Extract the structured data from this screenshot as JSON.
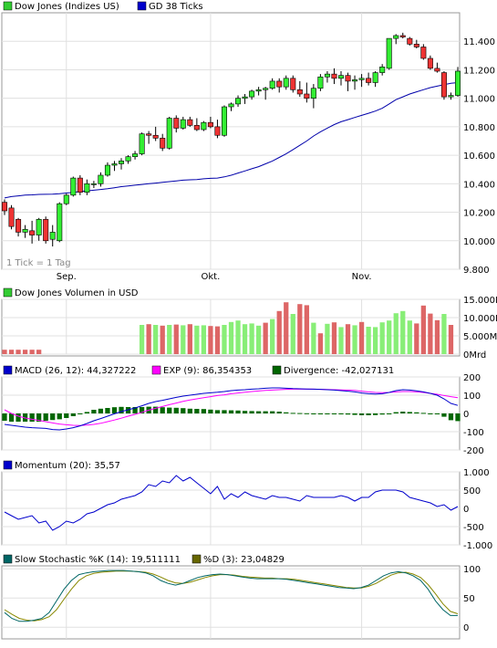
{
  "chart_data": [
    {
      "type": "candlestick",
      "legend": [
        {
          "label": "Dow Jones (Indizes US)",
          "color": "#33cc33"
        },
        {
          "label": "GD 38 Ticks",
          "color": "#0000cc"
        }
      ],
      "ylim": [
        9800,
        11600
      ],
      "yticks": [
        "11.400",
        "11.200",
        "11.000",
        "10.800",
        "10.600",
        "10.400",
        "10.200",
        "10.000",
        "9.800"
      ],
      "ytick_values": [
        11400,
        11200,
        11000,
        10800,
        10600,
        10400,
        10200,
        10000,
        9800
      ],
      "xticks": [
        {
          "label": "Sep.",
          "index": 9
        },
        {
          "label": "Okt.",
          "index": 30
        },
        {
          "label": "Nov.",
          "index": 52
        }
      ],
      "note": "1 Tick = 1 Tag",
      "candles": [
        [
          10270,
          10290,
          10180,
          10210
        ],
        [
          10230,
          10250,
          10080,
          10100
        ],
        [
          10150,
          10160,
          10030,
          10060
        ],
        [
          10060,
          10110,
          10020,
          10080
        ],
        [
          10070,
          10140,
          9980,
          10040
        ],
        [
          10040,
          10160,
          10000,
          10150
        ],
        [
          10150,
          10170,
          9980,
          10000
        ],
        [
          10010,
          10110,
          9960,
          10060
        ],
        [
          10000,
          10270,
          9990,
          10260
        ],
        [
          10260,
          10330,
          10250,
          10320
        ],
        [
          10320,
          10450,
          10310,
          10440
        ],
        [
          10440,
          10460,
          10320,
          10340
        ],
        [
          10340,
          10430,
          10320,
          10400
        ],
        [
          10400,
          10420,
          10370,
          10400
        ],
        [
          10400,
          10480,
          10380,
          10460
        ],
        [
          10460,
          10550,
          10450,
          10530
        ],
        [
          10530,
          10560,
          10490,
          10540
        ],
        [
          10540,
          10580,
          10500,
          10560
        ],
        [
          10560,
          10600,
          10540,
          10590
        ],
        [
          10590,
          10630,
          10570,
          10610
        ],
        [
          10610,
          10760,
          10600,
          10750
        ],
        [
          10750,
          10770,
          10680,
          10740
        ],
        [
          10740,
          10800,
          10700,
          10720
        ],
        [
          10720,
          10750,
          10630,
          10650
        ],
        [
          10650,
          10870,
          10640,
          10860
        ],
        [
          10860,
          10880,
          10760,
          10790
        ],
        [
          10790,
          10870,
          10780,
          10850
        ],
        [
          10850,
          10870,
          10800,
          10810
        ],
        [
          10810,
          10860,
          10770,
          10780
        ],
        [
          10780,
          10840,
          10770,
          10830
        ],
        [
          10830,
          10870,
          10790,
          10800
        ],
        [
          10800,
          10850,
          10720,
          10740
        ],
        [
          10740,
          10950,
          10730,
          10940
        ],
        [
          10940,
          10970,
          10910,
          10960
        ],
        [
          10960,
          11020,
          10940,
          11000
        ],
        [
          11000,
          11030,
          10960,
          11010
        ],
        [
          11010,
          11060,
          10990,
          11050
        ],
        [
          11050,
          11080,
          11020,
          11060
        ],
        [
          11060,
          11080,
          10990,
          11070
        ],
        [
          11070,
          11140,
          11060,
          11120
        ],
        [
          11120,
          11140,
          11040,
          11080
        ],
        [
          11080,
          11160,
          11060,
          11140
        ],
        [
          11140,
          11160,
          11040,
          11060
        ],
        [
          11060,
          11120,
          11010,
          11030
        ],
        [
          11030,
          11110,
          10970,
          11000
        ],
        [
          11000,
          11100,
          10930,
          11070
        ],
        [
          11070,
          11170,
          11050,
          11150
        ],
        [
          11150,
          11190,
          11110,
          11170
        ],
        [
          11170,
          11210,
          11100,
          11140
        ],
        [
          11140,
          11190,
          11090,
          11160
        ],
        [
          11160,
          11180,
          11050,
          11120
        ],
        [
          11120,
          11160,
          11060,
          11130
        ],
        [
          11130,
          11170,
          11080,
          11140
        ],
        [
          11140,
          11180,
          11090,
          11110
        ],
        [
          11110,
          11190,
          11080,
          11180
        ],
        [
          11180,
          11240,
          11160,
          11220
        ],
        [
          11210,
          11420,
          11200,
          11420
        ],
        [
          11420,
          11450,
          11380,
          11440
        ],
        [
          11440,
          11460,
          11420,
          11430
        ],
        [
          11420,
          11430,
          11370,
          11380
        ],
        [
          11380,
          11410,
          11350,
          11360
        ],
        [
          11360,
          11380,
          11270,
          11280
        ],
        [
          11280,
          11300,
          11200,
          11210
        ],
        [
          11210,
          11250,
          11180,
          11190
        ],
        [
          11180,
          11190,
          10990,
          11010
        ],
        [
          11010,
          11040,
          10990,
          11020
        ],
        [
          11020,
          11220,
          11010,
          11190
        ]
      ],
      "ma": [
        10300,
        10310,
        10315,
        10320,
        10322,
        10325,
        10326,
        10327,
        10330,
        10335,
        10340,
        10345,
        10350,
        10355,
        10360,
        10365,
        10372,
        10380,
        10385,
        10390,
        10395,
        10400,
        10405,
        10410,
        10415,
        10420,
        10425,
        10428,
        10430,
        10435,
        10438,
        10440,
        10448,
        10460,
        10475,
        10490,
        10505,
        10520,
        10540,
        10560,
        10585,
        10610,
        10640,
        10670,
        10700,
        10735,
        10765,
        10790,
        10815,
        10835,
        10850,
        10865,
        10880,
        10895,
        10910,
        10930,
        10960,
        10990,
        11010,
        11030,
        11045,
        11060,
        11075,
        11085,
        11095,
        11105,
        11110
      ]
    },
    {
      "type": "bar",
      "legend": [
        {
          "label": "Dow Jones Volumen in USD",
          "color": "#33cc33"
        }
      ],
      "ylim": [
        0,
        15000
      ],
      "yticks": [
        "15.000Mrd",
        "10.000Mrd",
        "5.000Mrd",
        "0Mrd"
      ],
      "ytick_values": [
        15000,
        10000,
        5000,
        0
      ],
      "values": [
        1200,
        1200,
        1200,
        1200,
        1200,
        1200,
        null,
        null,
        null,
        null,
        null,
        null,
        null,
        null,
        null,
        null,
        null,
        null,
        null,
        null,
        8000,
        8200,
        8000,
        7800,
        8000,
        8100,
        7900,
        8200,
        7800,
        7900,
        7700,
        7600,
        8000,
        8800,
        9200,
        8200,
        8400,
        7800,
        8600,
        9600,
        11800,
        14200,
        11000,
        13700,
        13400,
        8600,
        5700,
        8300,
        8700,
        7400,
        8200,
        7900,
        8800,
        7500,
        7400,
        8700,
        9200,
        11200,
        11800,
        9200,
        8400,
        13300,
        11100,
        9300,
        11000,
        8000
      ],
      "up": [
        false,
        false,
        false,
        false,
        false,
        false,
        null,
        null,
        null,
        null,
        null,
        null,
        null,
        null,
        null,
        null,
        null,
        null,
        null,
        null,
        true,
        false,
        true,
        false,
        true,
        false,
        true,
        false,
        true,
        true,
        false,
        false,
        true,
        true,
        true,
        true,
        true,
        true,
        false,
        true,
        false,
        false,
        true,
        false,
        false,
        true,
        false,
        true,
        false,
        true,
        false,
        true,
        false,
        true,
        true,
        true,
        true,
        true,
        true,
        true,
        false,
        false,
        false,
        false,
        true,
        false
      ]
    },
    {
      "type": "line+bar",
      "legend": [
        {
          "label": "MACD (26, 12): 44,327222",
          "color": "#0000cc"
        },
        {
          "label": "EXP (9): 86,354353",
          "color": "#ff00ff"
        },
        {
          "label": "Divergence: -42,027131",
          "color": "#006600"
        }
      ],
      "ylim": [
        -200,
        200
      ],
      "yticks": [
        "200",
        "100",
        "0",
        "-100",
        "-200"
      ],
      "ytick_values": [
        200,
        100,
        0,
        -100,
        -200
      ],
      "macd": [
        -60,
        -65,
        -70,
        -75,
        -78,
        -80,
        -82,
        -88,
        -90,
        -85,
        -78,
        -68,
        -55,
        -40,
        -28,
        -15,
        -2,
        10,
        20,
        30,
        42,
        55,
        65,
        72,
        80,
        88,
        95,
        100,
        105,
        110,
        113,
        116,
        120,
        125,
        128,
        130,
        133,
        135,
        138,
        140,
        140,
        138,
        136,
        135,
        134,
        133,
        132,
        130,
        128,
        125,
        122,
        118,
        112,
        108,
        106,
        108,
        115,
        125,
        130,
        128,
        124,
        118,
        110,
        100,
        80,
        55,
        44
      ],
      "exp": [
        20,
        0,
        -15,
        -25,
        -32,
        -38,
        -45,
        -52,
        -58,
        -62,
        -65,
        -66,
        -64,
        -60,
        -54,
        -45,
        -36,
        -26,
        -15,
        -5,
        6,
        18,
        28,
        38,
        48,
        57,
        66,
        74,
        80,
        86,
        92,
        98,
        102,
        108,
        112,
        116,
        120,
        123,
        126,
        128,
        130,
        132,
        133,
        133,
        133,
        133,
        132,
        131,
        130,
        129,
        128,
        126,
        122,
        118,
        115,
        114,
        115,
        118,
        120,
        120,
        118,
        115,
        110,
        105,
        98,
        92,
        86
      ],
      "divergence": [
        -40,
        -45,
        -45,
        -45,
        -45,
        -45,
        -40,
        -36,
        -32,
        -25,
        -15,
        -5,
        8,
        20,
        26,
        30,
        34,
        36,
        35,
        35,
        35,
        37,
        37,
        34,
        32,
        31,
        29,
        26,
        25,
        24,
        21,
        18,
        18,
        17,
        16,
        14,
        13,
        12,
        12,
        12,
        10,
        6,
        3,
        2,
        1,
        0,
        0,
        -1,
        -2,
        -4,
        -6,
        -8,
        -10,
        -10,
        -9,
        -6,
        0,
        7,
        10,
        8,
        6,
        3,
        0,
        -5,
        -18,
        -37,
        -42
      ]
    },
    {
      "type": "line",
      "legend": [
        {
          "label": "Momentum (20): 35,57",
          "color": "#0000cc"
        }
      ],
      "ylim": [
        -1000,
        1000
      ],
      "yticks": [
        "1.000",
        "500",
        "0",
        "-500",
        "-1.000"
      ],
      "ytick_values": [
        1000,
        500,
        0,
        -500,
        -1000
      ],
      "values": [
        -100,
        -200,
        -300,
        -250,
        -200,
        -400,
        -350,
        -600,
        -500,
        -350,
        -400,
        -300,
        -150,
        -100,
        0,
        100,
        150,
        250,
        300,
        350,
        450,
        650,
        600,
        750,
        700,
        900,
        750,
        850,
        700,
        550,
        400,
        600,
        250,
        400,
        300,
        450,
        350,
        300,
        250,
        350,
        300,
        300,
        250,
        200,
        350,
        300,
        300,
        300,
        300,
        350,
        300,
        200,
        300,
        300,
        450,
        500,
        500,
        500,
        450,
        300,
        250,
        200,
        150,
        50,
        100,
        -50,
        50
      ]
    },
    {
      "type": "line",
      "legend": [
        {
          "label": "Slow Stochastic %K (14): 19,511111",
          "color": "#006666"
        },
        {
          "label": "%D (3): 23,04829",
          "color": "#666600"
        }
      ],
      "ylim": [
        0,
        100
      ],
      "yticks": [
        "100",
        "50",
        "0"
      ],
      "ytick_values": [
        100,
        50,
        0
      ],
      "k": [
        25,
        15,
        10,
        10,
        12,
        15,
        25,
        45,
        65,
        80,
        90,
        93,
        95,
        96,
        97,
        97,
        97,
        96,
        95,
        93,
        88,
        80,
        75,
        72,
        75,
        80,
        85,
        88,
        90,
        91,
        90,
        88,
        86,
        84,
        83,
        83,
        83,
        83,
        82,
        80,
        78,
        76,
        74,
        72,
        70,
        68,
        67,
        66,
        68,
        72,
        80,
        88,
        93,
        95,
        93,
        88,
        80,
        65,
        45,
        30,
        20,
        20
      ],
      "d": [
        30,
        22,
        15,
        12,
        11,
        13,
        18,
        30,
        48,
        65,
        80,
        88,
        92,
        94,
        95,
        96,
        96,
        96,
        95,
        94,
        91,
        86,
        80,
        76,
        75,
        77,
        81,
        85,
        88,
        90,
        90,
        89,
        87,
        86,
        85,
        84,
        84,
        83,
        83,
        82,
        80,
        78,
        76,
        74,
        72,
        70,
        68,
        67,
        67,
        70,
        75,
        82,
        89,
        93,
        94,
        91,
        85,
        73,
        57,
        40,
        27,
        23
      ]
    }
  ]
}
